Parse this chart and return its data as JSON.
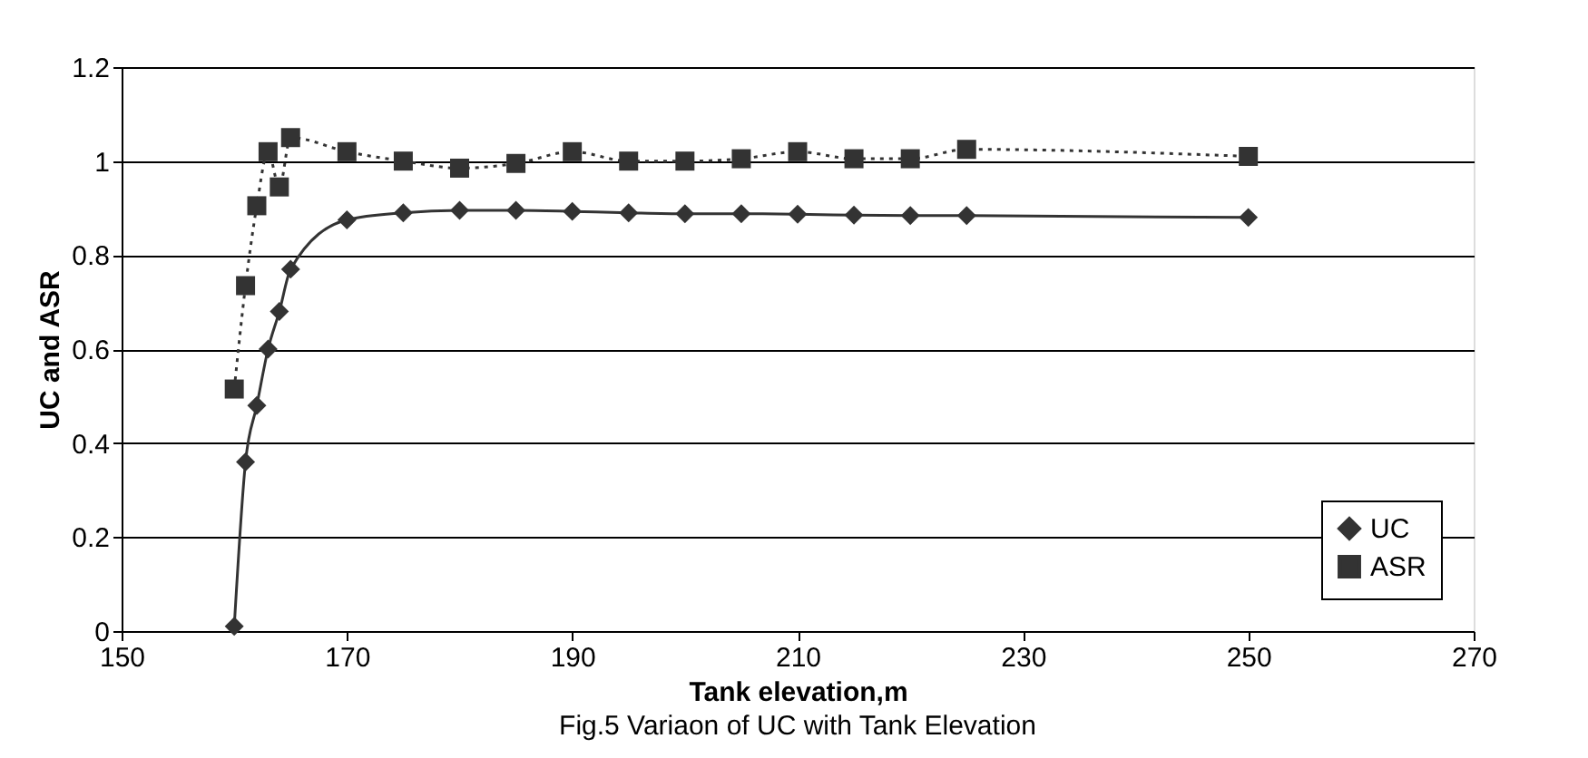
{
  "chart_data": {
    "type": "line",
    "xlabel": "Tank elevation,m",
    "ylabel": "UC and ASR",
    "annotations": [
      "Fig.5 Variaon of UC with Tank Elevation"
    ],
    "xlim": [
      150,
      270
    ],
    "xticks": [
      150,
      170,
      190,
      210,
      230,
      250,
      270
    ],
    "ylim": [
      0,
      1.2
    ],
    "yticks": [
      0,
      0.2,
      0.4,
      0.6,
      0.8,
      1,
      1.2
    ],
    "grid": "y",
    "legend": "bottom right",
    "x": [
      160,
      161,
      162,
      163,
      164,
      165,
      170,
      175,
      180,
      185,
      190,
      195,
      200,
      205,
      210,
      215,
      220,
      225,
      250
    ],
    "series": [
      {
        "name": "UC",
        "color": "#333333",
        "marker": "diamond",
        "line_style": "solid",
        "values": [
          0.01,
          0.36,
          0.48,
          0.6,
          0.68,
          0.77,
          0.875,
          0.89,
          0.895,
          0.895,
          0.893,
          0.89,
          0.888,
          0.888,
          0.887,
          0.885,
          0.884,
          0.884,
          0.88
        ]
      },
      {
        "name": "ASR",
        "color": "#333333",
        "marker": "square",
        "line_style": "dotted",
        "values": [
          0.515,
          0.735,
          0.905,
          1.02,
          0.945,
          1.05,
          1.02,
          1.0,
          0.985,
          0.995,
          1.02,
          1.0,
          1.0,
          1.005,
          1.02,
          1.005,
          1.005,
          1.025,
          1.01
        ]
      }
    ]
  }
}
